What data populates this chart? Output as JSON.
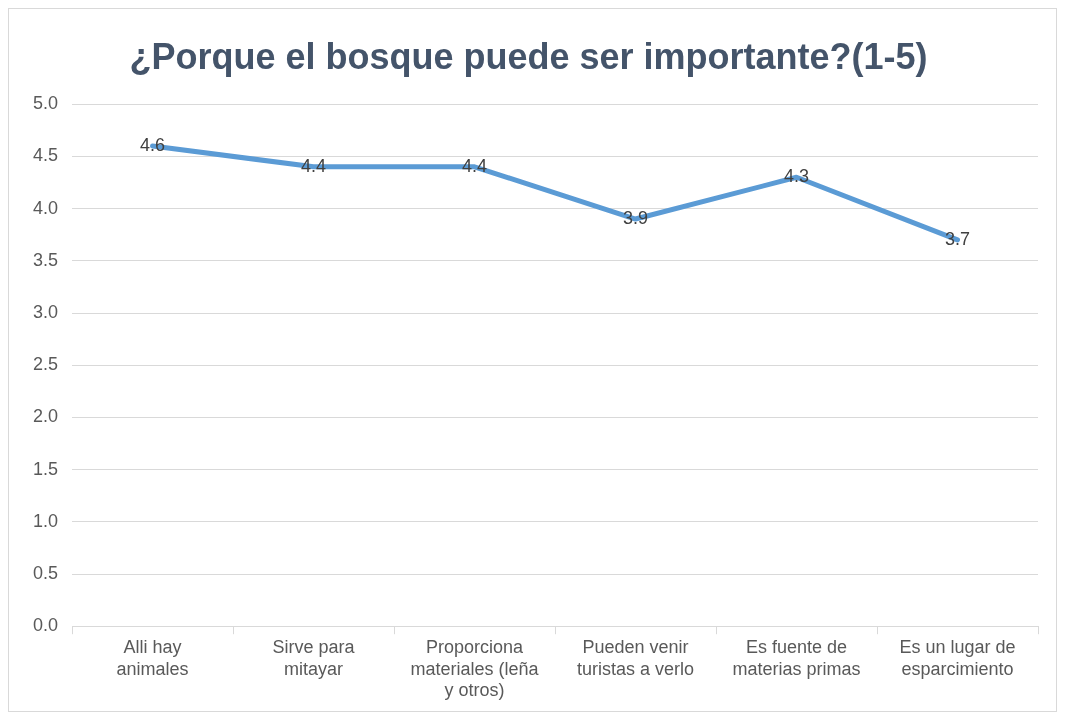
{
  "chart_data": {
    "type": "line",
    "title": "¿Porque el bosque puede ser importante?(1-5)",
    "categories": [
      "Alli hay animales",
      "Sirve para mitayar",
      "Proporciona materiales (leña y otros)",
      "Pueden venir turistas a verlo",
      "Es fuente de materias primas",
      "Es un lugar de esparcimiento"
    ],
    "values": [
      4.6,
      4.4,
      4.4,
      3.9,
      4.3,
      3.7
    ],
    "color": "#5b9bd5",
    "ylim": [
      0,
      5
    ],
    "yticks": [
      {
        "value": 0,
        "label": "0.0"
      },
      {
        "value": 0.5,
        "label": "0.5"
      },
      {
        "value": 1,
        "label": "1.0"
      },
      {
        "value": 1.5,
        "label": "1.5"
      },
      {
        "value": 2,
        "label": "2.0"
      },
      {
        "value": 2.5,
        "label": "2.5"
      },
      {
        "value": 3,
        "label": "3.0"
      },
      {
        "value": 3.5,
        "label": "3.5"
      },
      {
        "value": 4,
        "label": "4.0"
      },
      {
        "value": 4.5,
        "label": "4.5"
      },
      {
        "value": 5,
        "label": "5.0"
      }
    ],
    "grid": "y",
    "legend": false,
    "data_labels": true,
    "marker": "none",
    "line_style": "solid"
  }
}
